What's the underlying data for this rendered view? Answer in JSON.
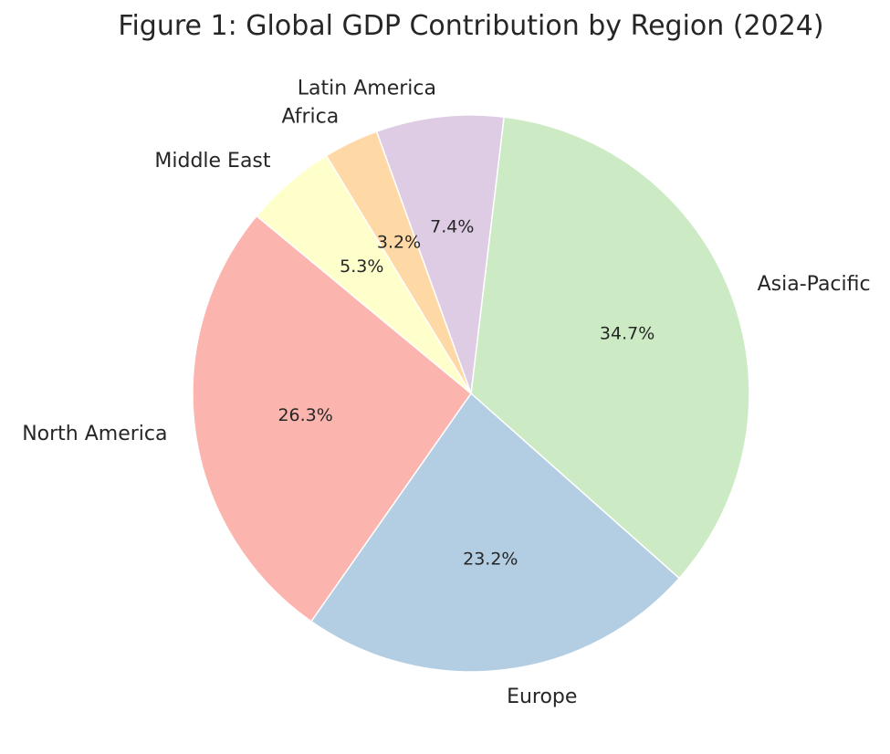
{
  "chart_data": {
    "type": "pie",
    "title": "Figure 1: Global GDP Contribution by Region (2024)",
    "categories": [
      "Asia-Pacific",
      "Europe",
      "North America",
      "Middle East",
      "Africa",
      "Latin America"
    ],
    "values": [
      34.7,
      23.2,
      26.3,
      5.3,
      3.2,
      7.4
    ],
    "percent_labels": [
      "34.7%",
      "23.2%",
      "26.3%",
      "5.3%",
      "3.2%",
      "7.4%"
    ],
    "colors": [
      "#ccebc5",
      "#b3cde3",
      "#fbb4ae",
      "#ffffcc",
      "#fed9a6",
      "#decbe4"
    ],
    "start_angle_deg": 83.2,
    "direction": "clockwise",
    "legend": "none"
  }
}
